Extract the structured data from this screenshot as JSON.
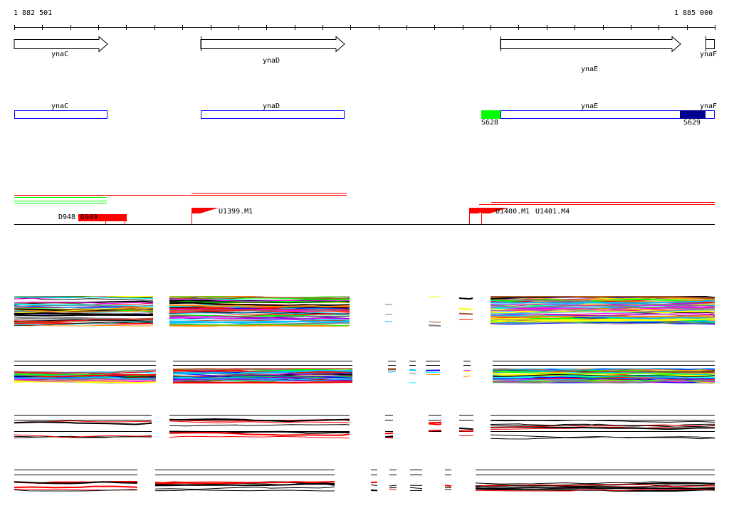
{
  "ruler": {
    "start_label": "1 882 501",
    "end_label": "1 885 000"
  },
  "genes": [
    {
      "name": "ynaC"
    },
    {
      "name": "ynaD"
    },
    {
      "name": "ynaE"
    },
    {
      "name": "ynaF"
    }
  ],
  "segments": {
    "left": "S628",
    "right": "S629"
  },
  "colors": {
    "segment_left": "#00ff00",
    "segment_right": "#000090",
    "feature": "#ff0000",
    "box": "#0000ff"
  },
  "features": {
    "d948": "D948",
    "d949": "D949",
    "u1399": "U1399.M1",
    "u1400": "U1400.M1",
    "u1401": "U1401.M4"
  }
}
